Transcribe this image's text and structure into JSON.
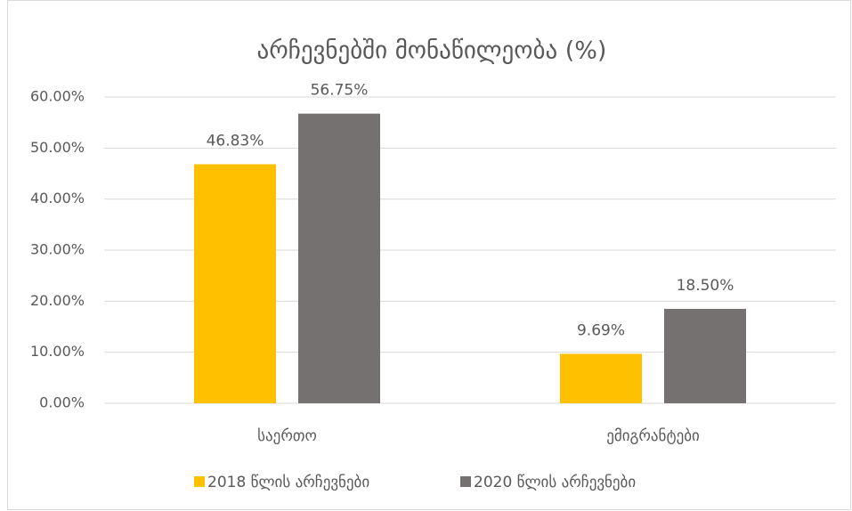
{
  "chart_data": {
    "type": "bar",
    "title": "არჩევნებში მონაწილეობა (%)",
    "categories": [
      "საერთო",
      "ემიგრანტები"
    ],
    "series": [
      {
        "name": "2018 წლის არჩევნები",
        "color": "#FFC000",
        "values": [
          46.83,
          9.69
        ],
        "value_labels": [
          "46.83%",
          "9.69%"
        ]
      },
      {
        "name": "2020 წლის არჩევნები",
        "color": "#767171",
        "values": [
          56.75,
          18.5
        ],
        "value_labels": [
          "56.75%",
          "18.50%"
        ]
      }
    ],
    "ylim": [
      0,
      60
    ],
    "yticks": [
      {
        "value": 0,
        "label": "0.00%"
      },
      {
        "value": 10,
        "label": "10.00%"
      },
      {
        "value": 20,
        "label": "20.00%"
      },
      {
        "value": 30,
        "label": "30.00%"
      },
      {
        "value": 40,
        "label": "40.00%"
      },
      {
        "value": 50,
        "label": "50.00%"
      },
      {
        "value": 60,
        "label": "60.00%"
      }
    ],
    "grid": true,
    "legend": "bottom"
  }
}
